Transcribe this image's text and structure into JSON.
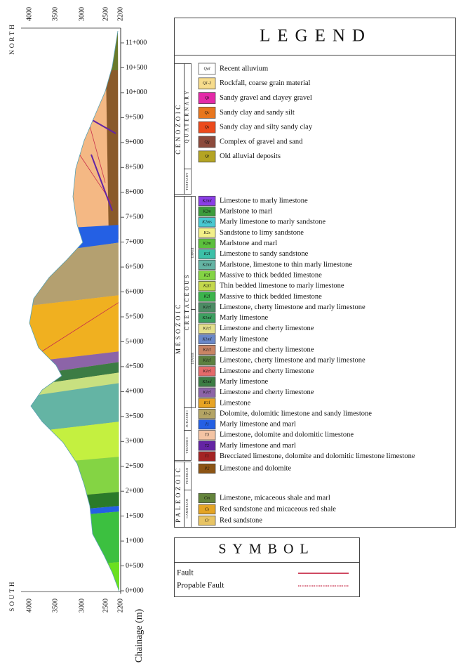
{
  "section": {
    "north": "NORTH",
    "south": "SOUTH",
    "elevation_top": [
      "4000",
      "3500",
      "3000",
      "2500",
      "2200"
    ],
    "elevation_bottom": [
      "4000",
      "3500",
      "3000",
      "2500",
      "2200"
    ],
    "chainage": [
      "11+000",
      "10+500",
      "10+000",
      "9+500",
      "9+000",
      "8+500",
      "8+000",
      "7+500",
      "7+000",
      "6+500",
      "6+000",
      "5+500",
      "5+000",
      "4+500",
      "4+000",
      "3+500",
      "3+000",
      "2+500",
      "2+000",
      "1+500",
      "1+000",
      "0+500",
      "0+000"
    ],
    "axis_title": "Chainage (m)"
  },
  "legend": {
    "title": "LEGEND",
    "eras": [
      "CENOZOIC",
      "MESOZOIC",
      "PALEOZOIC"
    ],
    "periods": [
      "QUATERNARY",
      "TERTIARY",
      "CRETACEOUS",
      "JURASSIC",
      "TRIASSIC",
      "PERMIAN",
      "CAMBRIAN"
    ],
    "epochs": [
      "UPPER",
      "LOWER"
    ],
    "units": [
      {
        "code": "Qal",
        "description": "Recent alluvium",
        "color": "#ffffff"
      },
      {
        "code": "Q1-2",
        "description": "Rockfall, coarse grain material",
        "color": "#f7dc8c"
      },
      {
        "code": "Qt",
        "description": "Sandy gravel and clayey gravel",
        "color": "#e42aa8"
      },
      {
        "code": "Qc",
        "description": "Sandy clay and sandy silt",
        "color": "#e8761e"
      },
      {
        "code": "Qs",
        "description": "Sandy clay and silty sandy clay",
        "color": "#ec4a1c"
      },
      {
        "code": "Qg",
        "description": "Complex of gravel and sand",
        "color": "#8c4a3c"
      },
      {
        "code": "Qt",
        "description": "Old alluvial deposits",
        "color": "#b4a424"
      },
      {
        "code": "K2ml",
        "description": "Limestone to marly limestone",
        "color": "#8a3ee6"
      },
      {
        "code": "K2m",
        "description": "Marlstone to marl",
        "color": "#3c9c3c"
      },
      {
        "code": "K2ms",
        "description": "Marly limestone to marly sandstone",
        "color": "#48c8d0"
      },
      {
        "code": "K2s",
        "description": "Sandstone to limy sandstone",
        "color": "#f2f088"
      },
      {
        "code": "K2m",
        "description": "Marlstone and marl",
        "color": "#5cc03c"
      },
      {
        "code": "K2l",
        "description": "Limestone to sandy sandstone",
        "color": "#3cc0a8"
      },
      {
        "code": "K2ml",
        "description": "Marlstone, limestone to thin marly limestone",
        "color": "#64b4a4"
      },
      {
        "code": "K2l",
        "description": "Massive to thick bedded limestone",
        "color": "#84d444"
      },
      {
        "code": "K2tl",
        "description": "Thin bedded limestone to marly limestone",
        "color": "#c4d84c"
      },
      {
        "code": "K2l",
        "description": "Massive to thick bedded limestone",
        "color": "#3cb44c"
      },
      {
        "code": "K1cl",
        "description": "Limestone, cherty limestone and marly limestone",
        "color": "#4c8c64"
      },
      {
        "code": "K1ml",
        "description": "Marly limestone",
        "color": "#3ca060"
      },
      {
        "code": "K1cl",
        "description": "Limestone and cherty limestone",
        "color": "#e4e08c"
      },
      {
        "code": "K1ml",
        "description": "Marly limestone",
        "color": "#6a88c8"
      },
      {
        "code": "K1cl",
        "description": "Limestone and cherty limestone",
        "color": "#c88464"
      },
      {
        "code": "K1cl",
        "description": "Limestone, cherty limestone and marly limestone",
        "color": "#5c8040"
      },
      {
        "code": "K1cl",
        "description": "Limestone and cherty limestone",
        "color": "#e46a6a"
      },
      {
        "code": "K1ml",
        "description": "Marly limestone",
        "color": "#3c7c44"
      },
      {
        "code": "K1cl",
        "description": "Limestone and cherty limestone",
        "color": "#8c64a8"
      },
      {
        "code": "K1l",
        "description": "Limestone",
        "color": "#e8a424"
      },
      {
        "code": "J1-2",
        "description": "Dolomite, dolomitic limestone and sandy limestone",
        "color": "#b4a464"
      },
      {
        "code": "J1",
        "description": "Marly limestone and marl",
        "color": "#2460e4"
      },
      {
        "code": "T3",
        "description": "Limestone, dolomite and dolomitic limestone",
        "color": "#f4c4a4"
      },
      {
        "code": "T2",
        "description": "Marly limestone and marl",
        "color": "#6424a4"
      },
      {
        "code": "T1",
        "description": "Brecciated limestone, dolomite and dolomitic limestone limestone",
        "color": "#a42424"
      },
      {
        "code": "P2",
        "description": "Limestone and dolomite",
        "color": "#8c5414"
      },
      {
        "code": "Cm",
        "description": "Limestone, micaceous shale and marl",
        "color": "#64843c"
      },
      {
        "code": "Cs",
        "description": "Red sandstone and micaceous red shale",
        "color": "#e4a424"
      },
      {
        "code": "Cr",
        "description": "Red sandstone",
        "color": "#e8c464"
      }
    ]
  },
  "symbol": {
    "title": "SYMBOL",
    "items": [
      {
        "label": "Fault",
        "color": "#c8304c",
        "style": "solid"
      },
      {
        "label": "Propable Fault",
        "color": "#c8304c",
        "style": "dotted"
      }
    ]
  }
}
